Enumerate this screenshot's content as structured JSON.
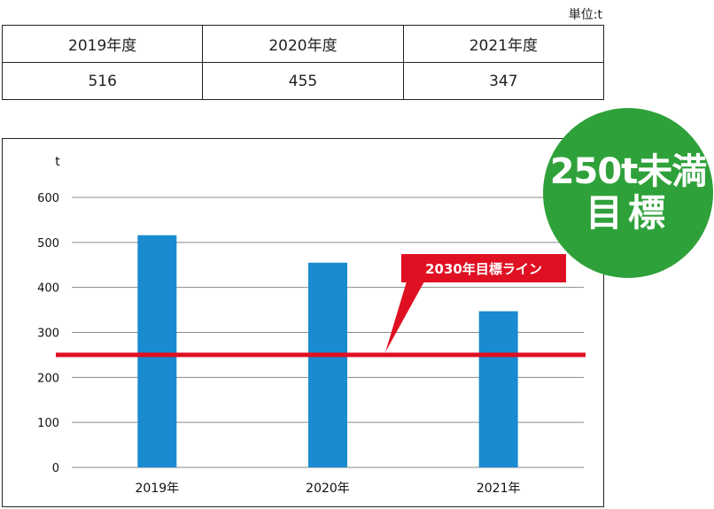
{
  "unit_label": "単位:t",
  "table": {
    "headers": [
      "2019年度",
      "2020年度",
      "2021年度"
    ],
    "values": [
      "516",
      "455",
      "347"
    ]
  },
  "badge": {
    "line1": "250t未満",
    "line2": "目標",
    "color": "#2fa13a"
  },
  "chart_data": {
    "type": "bar",
    "categories": [
      "2019年",
      "2020年",
      "2021年"
    ],
    "values": [
      516,
      455,
      347
    ],
    "ylabel": "t",
    "ylim": [
      0,
      600
    ],
    "yticks": [
      0,
      100,
      200,
      300,
      400,
      500,
      600
    ],
    "grid": true,
    "bar_color": "#1a8bd0",
    "target_line": {
      "value": 250,
      "label": "2030年目標ライン",
      "color": "#e01023"
    }
  }
}
